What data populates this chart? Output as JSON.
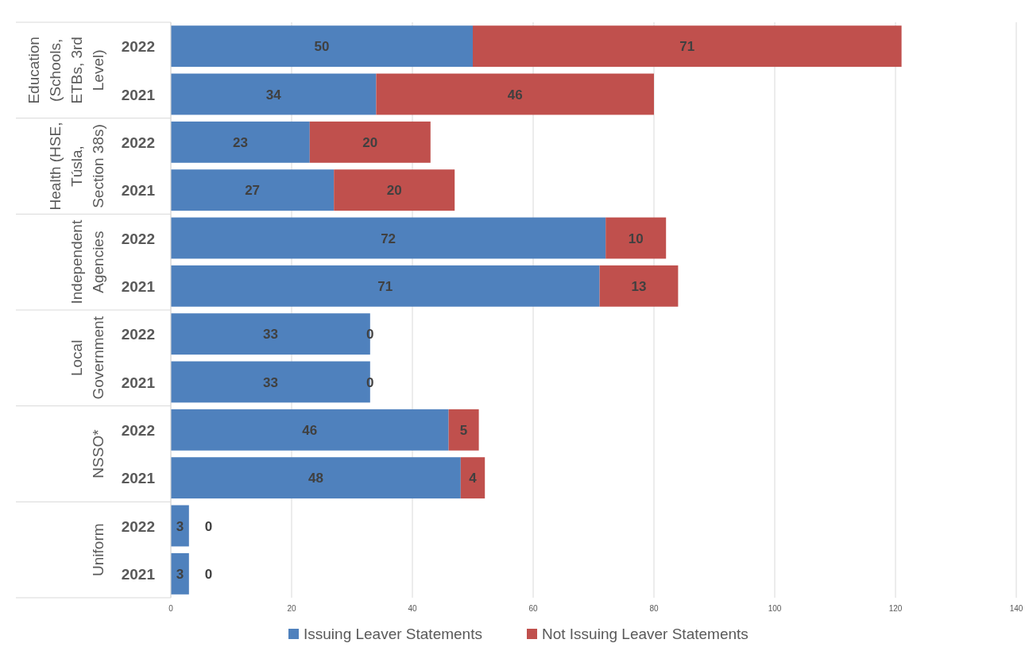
{
  "chart_data": {
    "type": "bar",
    "orientation": "horizontal",
    "stacked": true,
    "categories": [
      "2022",
      "2021",
      "2022",
      "2021",
      "2022",
      "2021",
      "2022",
      "2021",
      "2022",
      "2021",
      "2022",
      "2021"
    ],
    "annotations": [
      "Education (Schools, ETBs, 3rd Level)",
      "Health (HSE, Túsla, Section 38s)",
      "Independent Agencies",
      "Local Government",
      "NSSO*",
      "Uniform"
    ],
    "series": [
      {
        "name": "Issuing Leaver Statements",
        "color": "#4f81bd",
        "values": [
          50,
          34,
          23,
          27,
          72,
          71,
          33,
          33,
          46,
          48,
          3,
          3
        ]
      },
      {
        "name": "Not Issuing Leaver Statements",
        "color": "#c0504d",
        "values": [
          71,
          46,
          20,
          20,
          10,
          13,
          0,
          0,
          5,
          4,
          0,
          0
        ]
      }
    ],
    "xlim": [
      0,
      140
    ],
    "xticks": [
      0,
      20,
      40,
      60,
      80,
      100,
      120,
      140
    ],
    "grid": "x",
    "legend": "bottom",
    "data_labels": true
  }
}
